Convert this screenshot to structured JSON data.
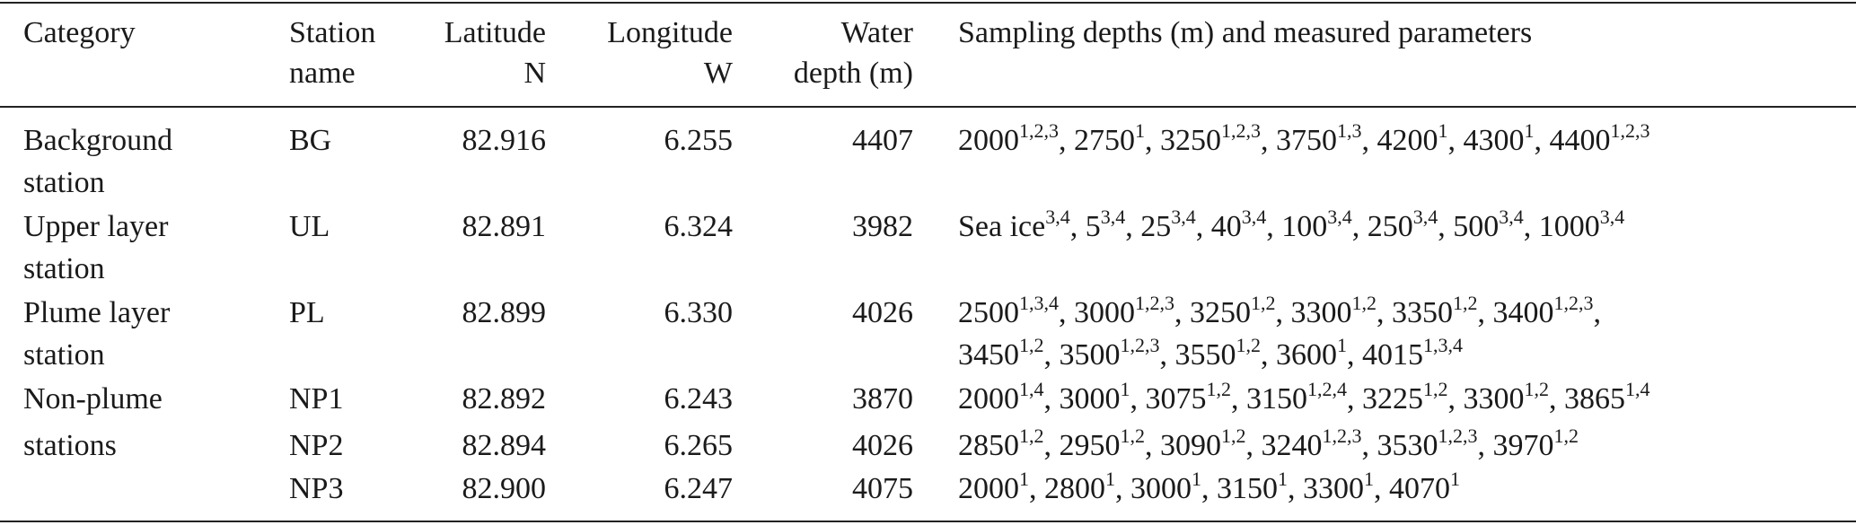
{
  "headers": {
    "category": "Category",
    "station_l1": "Station",
    "station_l2": "name",
    "lat_l1": "Latitude",
    "lat_l2": "N",
    "lon_l1": "Longitude",
    "lon_l2": "W",
    "depth_l1": "Water",
    "depth_l2": "depth (m)",
    "sampling": "Sampling depths (m) and measured parameters"
  },
  "categories": [
    {
      "line1": "Background",
      "line2": "station"
    },
    {
      "line1": "Upper layer",
      "line2": "station"
    },
    {
      "line1": "Plume layer",
      "line2": "station"
    },
    {
      "line1": "Non-plume",
      "line2": "stations"
    }
  ],
  "rows": [
    {
      "station": "BG",
      "lat": "82.916",
      "lon": "6.255",
      "depth": "4407",
      "samples": [
        [
          {
            "v": "2000",
            "s": "1,2,3"
          },
          {
            "v": "2750",
            "s": "1"
          },
          {
            "v": "3250",
            "s": "1,2,3"
          },
          {
            "v": "3750",
            "s": "1,3"
          },
          {
            "v": "4200",
            "s": "1"
          },
          {
            "v": "4300",
            "s": "1"
          },
          {
            "v": "4400",
            "s": "1,2,3"
          }
        ]
      ]
    },
    {
      "station": "UL",
      "lat": "82.891",
      "lon": "6.324",
      "depth": "3982",
      "samples": [
        [
          {
            "v": "Sea ice",
            "s": "3,4"
          },
          {
            "v": "5",
            "s": "3,4"
          },
          {
            "v": "25",
            "s": "3,4"
          },
          {
            "v": "40",
            "s": "3,4"
          },
          {
            "v": "100",
            "s": "3,4"
          },
          {
            "v": "250",
            "s": "3,4"
          },
          {
            "v": "500",
            "s": "3,4"
          },
          {
            "v": "1000",
            "s": "3,4"
          }
        ]
      ]
    },
    {
      "station": "PL",
      "lat": "82.899",
      "lon": "6.330",
      "depth": "4026",
      "samples": [
        [
          {
            "v": "2500",
            "s": "1,3,4"
          },
          {
            "v": "3000",
            "s": "1,2,3"
          },
          {
            "v": "3250",
            "s": "1,2"
          },
          {
            "v": "3300",
            "s": "1,2"
          },
          {
            "v": "3350",
            "s": "1,2"
          },
          {
            "v": "3400",
            "s": "1,2,3"
          }
        ],
        [
          {
            "v": "3450",
            "s": "1,2"
          },
          {
            "v": "3500",
            "s": "1,2,3"
          },
          {
            "v": "3550",
            "s": "1,2"
          },
          {
            "v": "3600",
            "s": "1"
          },
          {
            "v": "4015",
            "s": "1,3,4"
          }
        ]
      ]
    },
    {
      "station": "NP1",
      "lat": "82.892",
      "lon": "6.243",
      "depth": "3870",
      "samples": [
        [
          {
            "v": "2000",
            "s": "1,4"
          },
          {
            "v": "3000",
            "s": "1"
          },
          {
            "v": "3075",
            "s": "1,2"
          },
          {
            "v": "3150",
            "s": "1,2,4"
          },
          {
            "v": "3225",
            "s": "1,2"
          },
          {
            "v": "3300",
            "s": "1,2"
          },
          {
            "v": "3865",
            "s": "1,4"
          }
        ]
      ]
    },
    {
      "station": "NP2",
      "lat": "82.894",
      "lon": "6.265",
      "depth": "4026",
      "samples": [
        [
          {
            "v": "2850",
            "s": "1,2"
          },
          {
            "v": "2950",
            "s": "1,2"
          },
          {
            "v": "3090",
            "s": "1,2"
          },
          {
            "v": "3240",
            "s": "1,2,3"
          },
          {
            "v": "3530",
            "s": "1,2,3"
          },
          {
            "v": "3970",
            "s": "1,2"
          }
        ]
      ]
    },
    {
      "station": "NP3",
      "lat": "82.900",
      "lon": "6.247",
      "depth": "4075",
      "samples": [
        [
          {
            "v": "2000",
            "s": "1"
          },
          {
            "v": "2800",
            "s": "1"
          },
          {
            "v": "3000",
            "s": "1"
          },
          {
            "v": "3150",
            "s": "1"
          },
          {
            "v": "3300",
            "s": "1"
          },
          {
            "v": "4070",
            "s": "1"
          }
        ]
      ]
    }
  ]
}
